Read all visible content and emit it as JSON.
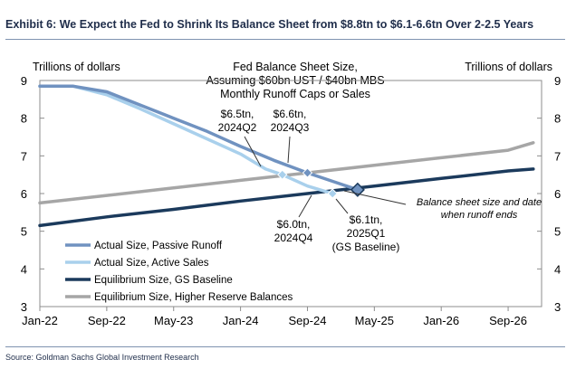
{
  "header": {
    "title": "Exhibit 6: We Expect the Fed to Shrink Its Balance Sheet from $8.8tn to $6.1-6.6tn Over 2-2.5 Years"
  },
  "footer": {
    "source": "Source: Goldman Sachs Global Investment Research"
  },
  "chart_data": {
    "type": "line",
    "title": [
      "Fed Balance Sheet Size,",
      "Assuming $60bn UST / $40bn MBS",
      "Monthly Runoff Caps or Sales"
    ],
    "ylabel_left": "Trillions of dollars",
    "ylabel_right": "Trillions of dollars",
    "ylim": [
      3,
      9
    ],
    "yticks": [
      "3",
      "4",
      "5",
      "6",
      "7",
      "8",
      "9"
    ],
    "xlim": [
      "2022-01",
      "2027-01"
    ],
    "xticks": [
      {
        "label": "Jan-22",
        "date": "2022-01"
      },
      {
        "label": "Sep-22",
        "date": "2022-09"
      },
      {
        "label": "May-23",
        "date": "2023-05"
      },
      {
        "label": "Jan-24",
        "date": "2024-01"
      },
      {
        "label": "Sep-24",
        "date": "2024-09"
      },
      {
        "label": "May-25",
        "date": "2025-05"
      },
      {
        "label": "Jan-26",
        "date": "2026-01"
      },
      {
        "label": "Sep-26",
        "date": "2026-09"
      }
    ],
    "grid": false,
    "legend_position": "bottom-left",
    "series": [
      {
        "name": "Equilibrium Size, Higher Reserve Balances",
        "color": "#a6a6a6",
        "points": [
          [
            "2022-01",
            5.75
          ],
          [
            "2022-09",
            5.95
          ],
          [
            "2023-05",
            6.15
          ],
          [
            "2024-01",
            6.35
          ],
          [
            "2024-09",
            6.55
          ],
          [
            "2025-05",
            6.75
          ],
          [
            "2026-01",
            6.95
          ],
          [
            "2026-09",
            7.15
          ],
          [
            "2026-12",
            7.35
          ]
        ]
      },
      {
        "name": "Equilibrium Size, GS Baseline",
        "color": "#1b3a5c",
        "points": [
          [
            "2022-01",
            5.15
          ],
          [
            "2022-09",
            5.38
          ],
          [
            "2023-05",
            5.58
          ],
          [
            "2024-01",
            5.8
          ],
          [
            "2024-09",
            6.0
          ],
          [
            "2025-05",
            6.2
          ],
          [
            "2026-01",
            6.4
          ],
          [
            "2026-09",
            6.6
          ],
          [
            "2026-12",
            6.65
          ]
        ]
      },
      {
        "name": "Actual Size, Active Sales",
        "color": "#a9d0ec",
        "points": [
          [
            "2022-01",
            8.85
          ],
          [
            "2022-05",
            8.85
          ],
          [
            "2022-09",
            8.62
          ],
          [
            "2023-01",
            8.25
          ],
          [
            "2023-05",
            7.85
          ],
          [
            "2023-09",
            7.45
          ],
          [
            "2024-01",
            7.05
          ],
          [
            "2024-04",
            6.65
          ],
          [
            "2024-06",
            6.5
          ],
          [
            "2024-09",
            6.2
          ],
          [
            "2024-12",
            6.0
          ]
        ]
      },
      {
        "name": "Actual Size, Passive Runoff",
        "color": "#7092c0",
        "points": [
          [
            "2022-01",
            8.85
          ],
          [
            "2022-05",
            8.85
          ],
          [
            "2022-09",
            8.7
          ],
          [
            "2023-01",
            8.35
          ],
          [
            "2023-05",
            8.0
          ],
          [
            "2023-09",
            7.65
          ],
          [
            "2024-01",
            7.25
          ],
          [
            "2024-05",
            6.88
          ],
          [
            "2024-09",
            6.55
          ],
          [
            "2025-03",
            6.1
          ]
        ]
      }
    ],
    "markers": [
      {
        "label": [
          "$6.5tn,",
          "2024Q2"
        ],
        "date": "2024-06",
        "value": 6.5,
        "color": "#a9d0ec"
      },
      {
        "label": [
          "$6.6tn,",
          "2024Q3"
        ],
        "date": "2024-09",
        "value": 6.55,
        "color": "#7092c0"
      },
      {
        "label": [
          "$6.0tn,",
          "2024Q4"
        ],
        "date": "2024-12",
        "value": 6.0,
        "color": "#a9d0ec"
      },
      {
        "label": [
          "$6.1tn,",
          "2025Q1",
          "(GS Baseline)"
        ],
        "date": "2025-03",
        "value": 6.1,
        "color": "#1b3a5c"
      }
    ],
    "annotations": [
      {
        "text": [
          "Balance sheet size and date",
          "when runoff ends"
        ]
      }
    ]
  }
}
